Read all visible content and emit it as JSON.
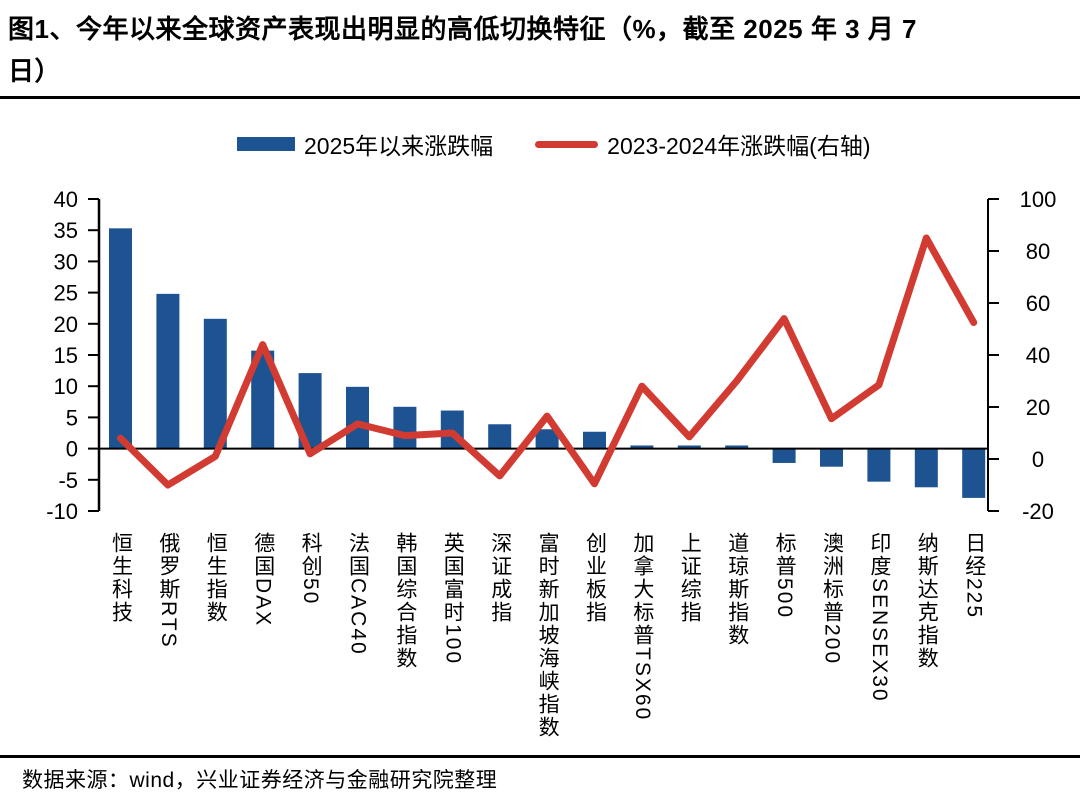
{
  "title": {
    "line1": "图1、今年以来全球资产表现出明显的高低切换特征（%，截至 2025 年 3 月 7",
    "line2": "日）"
  },
  "legend": {
    "bar_label": "2025年以来涨跌幅",
    "line_label": "2023-2024年涨跌幅(右轴)"
  },
  "footer": {
    "source_text": "数据来源：wind，兴业证券经济与金融研究院整理"
  },
  "colors": {
    "bar": "#1E5391",
    "line": "#D13B31",
    "axis": "#000000",
    "background": "#FFFFFF"
  },
  "chart_data": {
    "type": "bar",
    "subtype": "combo-bar-line-dual-axis",
    "title": "今年以来全球资产表现出明显的高低切换特征（%，截至 2025 年 3 月 7 日）",
    "categories": [
      "恒生科技",
      "俄罗斯RTS",
      "恒生指数",
      "德国DAX",
      "科创50",
      "法国CAC40",
      "韩国综合指数",
      "英国富时100",
      "深证成指",
      "富时新加坡海峡指数",
      "创业板指",
      "加拿大标普TSX60",
      "上证综指",
      "道琼斯指数",
      "标普500",
      "澳洲标普200",
      "印度SENSEX30",
      "纳斯达克指数",
      "日经225"
    ],
    "series": [
      {
        "name": "2025年以来涨跌幅",
        "type": "bar",
        "axis": "left",
        "color": "#1E5391",
        "values": [
          35.3,
          24.8,
          20.8,
          15.7,
          12.1,
          9.9,
          6.7,
          6.1,
          3.9,
          3.1,
          2.7,
          0.5,
          0.5,
          0.5,
          -2.3,
          -2.9,
          -5.3,
          -6.2,
          -7.9
        ]
      },
      {
        "name": "2023-2024年涨跌幅(右轴)",
        "type": "line",
        "axis": "right",
        "color": "#D13B31",
        "values": [
          8,
          -10,
          1,
          44,
          2,
          13.5,
          9,
          10,
          -6.5,
          16.5,
          -9.5,
          28,
          8.5,
          30,
          54,
          15.5,
          28.5,
          85,
          52.5
        ]
      }
    ],
    "left_axis": {
      "min": -10,
      "max": 40,
      "ticks": [
        40,
        35,
        30,
        25,
        20,
        15,
        10,
        5,
        0,
        -5,
        -10
      ]
    },
    "right_axis": {
      "min": -20,
      "max": 100,
      "ticks": [
        100,
        80,
        60,
        40,
        20,
        0,
        -20
      ]
    },
    "grid": false,
    "legend_position": "top-center",
    "xlabel": "",
    "ylabel": ""
  }
}
